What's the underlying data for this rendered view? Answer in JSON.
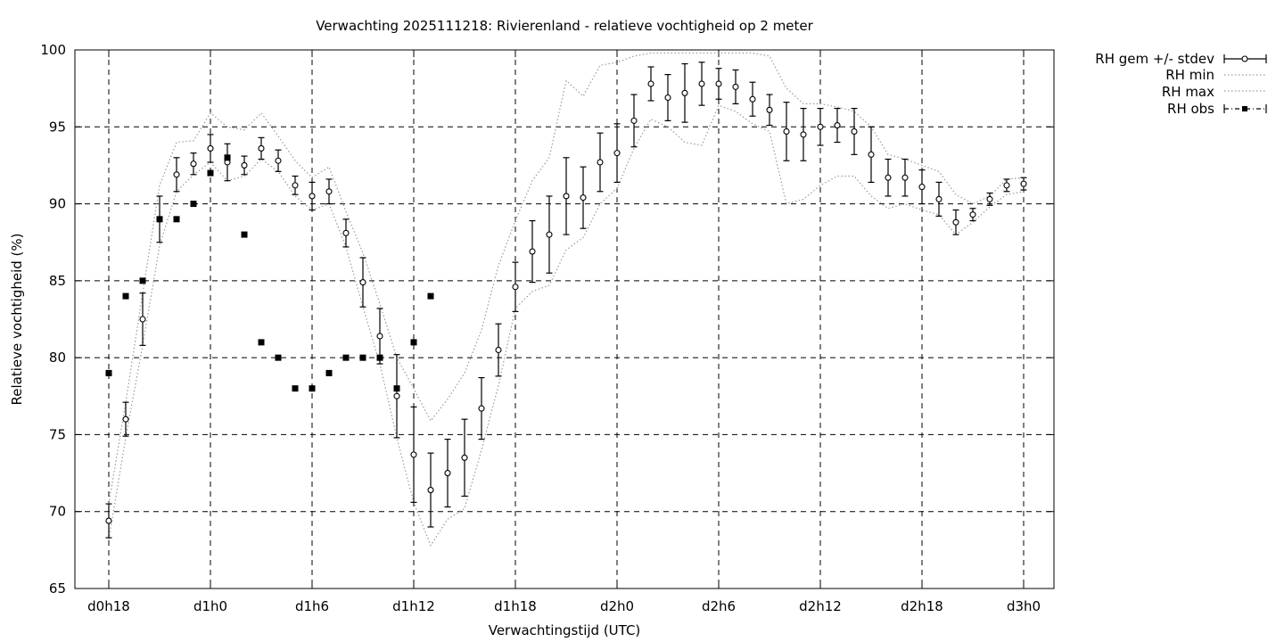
{
  "chart_data": {
    "type": "scatter",
    "title": "Verwachting 2025111218: Rivierenland - relatieve vochtigheid op 2 meter",
    "xlabel": "Verwachtingstijd (UTC)",
    "ylabel": "Relatieve vochtigheid (%)",
    "x_unit": "hours since d0h0",
    "xlim": [
      16,
      74
    ],
    "ylim": [
      65,
      100
    ],
    "x_ticks": [
      {
        "value": 18,
        "label": "d0h18"
      },
      {
        "value": 24,
        "label": "d1h0"
      },
      {
        "value": 30,
        "label": "d1h6"
      },
      {
        "value": 36,
        "label": "d1h12"
      },
      {
        "value": 42,
        "label": "d1h18"
      },
      {
        "value": 48,
        "label": "d2h0"
      },
      {
        "value": 54,
        "label": "d2h6"
      },
      {
        "value": 60,
        "label": "d2h12"
      },
      {
        "value": 66,
        "label": "d2h18"
      },
      {
        "value": 72,
        "label": "d3h0"
      }
    ],
    "y_ticks": [
      65,
      70,
      75,
      80,
      85,
      90,
      95,
      100
    ],
    "grid": true,
    "legend_position": "outside-top-right",
    "legend": [
      {
        "label": "RH gem +/- stdev",
        "style": "errorbar-open-circle"
      },
      {
        "label": "RH min",
        "style": "dotted"
      },
      {
        "label": "RH max",
        "style": "dotted"
      },
      {
        "label": "RH obs",
        "style": "filled-square"
      }
    ],
    "series": [
      {
        "name": "RH gem +/- stdev",
        "x": [
          18,
          19,
          20,
          21,
          22,
          23,
          24,
          25,
          26,
          27,
          28,
          29,
          30,
          31,
          32,
          33,
          34,
          35,
          36,
          37,
          38,
          39,
          40,
          41,
          42,
          43,
          44,
          45,
          46,
          47,
          48,
          49,
          50,
          51,
          52,
          53,
          54,
          55,
          56,
          57,
          58,
          59,
          60,
          61,
          62,
          63,
          64,
          65,
          66,
          67,
          68,
          69,
          70,
          71,
          72
        ],
        "mean": [
          69.4,
          76.0,
          82.5,
          89.0,
          91.9,
          92.6,
          93.6,
          92.7,
          92.5,
          93.6,
          92.8,
          91.2,
          90.5,
          90.8,
          88.1,
          84.9,
          81.4,
          77.5,
          73.7,
          71.4,
          72.5,
          73.5,
          76.7,
          80.5,
          84.6,
          86.9,
          88.0,
          90.5,
          90.4,
          92.7,
          93.3,
          95.4,
          97.8,
          96.9,
          97.2,
          97.8,
          97.8,
          97.6,
          96.8,
          96.1,
          94.7,
          94.5,
          95.0,
          95.1,
          94.7,
          93.2,
          91.7,
          91.7,
          91.1,
          90.3,
          88.8,
          89.3,
          90.3,
          91.2,
          91.3
        ],
        "stdev": [
          1.1,
          1.1,
          1.7,
          1.5,
          1.1,
          0.7,
          0.9,
          1.2,
          0.6,
          0.7,
          0.7,
          0.6,
          0.9,
          0.8,
          0.9,
          1.6,
          1.8,
          2.7,
          3.1,
          2.4,
          2.2,
          2.5,
          2.0,
          1.7,
          1.6,
          2.0,
          2.5,
          2.5,
          2.0,
          1.9,
          1.9,
          1.7,
          1.1,
          1.5,
          1.9,
          1.4,
          1.0,
          1.1,
          1.1,
          1.0,
          1.9,
          1.7,
          1.2,
          1.1,
          1.5,
          1.8,
          1.2,
          1.2,
          1.1,
          1.1,
          0.8,
          0.4,
          0.4,
          0.4,
          0.4
        ]
      },
      {
        "name": "RH min",
        "x": [
          18,
          19,
          20,
          21,
          22,
          23,
          24,
          25,
          26,
          27,
          28,
          29,
          30,
          31,
          32,
          33,
          34,
          35,
          36,
          37,
          38,
          39,
          40,
          41,
          42,
          43,
          44,
          45,
          46,
          47,
          48,
          49,
          50,
          51,
          52,
          53,
          54,
          55,
          56,
          57,
          58,
          59,
          60,
          61,
          62,
          63,
          64,
          65,
          66,
          67,
          68,
          69,
          70,
          71,
          72
        ],
        "values": [
          68.2,
          74.8,
          80.8,
          87.3,
          90.8,
          91.9,
          92.7,
          91.5,
          91.8,
          92.9,
          92.1,
          90.5,
          89.6,
          90.0,
          87.2,
          83.3,
          79.6,
          74.8,
          70.6,
          67.8,
          69.5,
          70.2,
          74.0,
          78.2,
          83.2,
          84.3,
          84.7,
          87.0,
          87.8,
          90.0,
          91.0,
          93.6,
          95.5,
          95.0,
          94.0,
          93.8,
          96.4,
          96.0,
          95.2,
          94.7,
          90.0,
          90.3,
          91.2,
          91.8,
          91.8,
          90.5,
          89.7,
          90.0,
          89.6,
          89.3,
          88.0,
          88.8,
          89.8,
          90.6,
          90.8
        ]
      },
      {
        "name": "RH max",
        "x": [
          18,
          19,
          20,
          21,
          22,
          23,
          24,
          25,
          26,
          27,
          28,
          29,
          30,
          31,
          32,
          33,
          34,
          35,
          36,
          37,
          38,
          39,
          40,
          41,
          42,
          43,
          44,
          45,
          46,
          47,
          48,
          49,
          50,
          51,
          52,
          53,
          54,
          55,
          56,
          57,
          58,
          59,
          60,
          61,
          62,
          63,
          64,
          65,
          66,
          67,
          68,
          69,
          70,
          71,
          72
        ],
        "values": [
          70.5,
          77.1,
          84.2,
          91.2,
          94.0,
          94.1,
          95.9,
          95.0,
          94.8,
          95.9,
          94.4,
          92.8,
          91.7,
          92.4,
          89.5,
          86.8,
          83.5,
          80.0,
          78.0,
          75.9,
          77.3,
          79.0,
          81.8,
          86.0,
          88.9,
          91.5,
          93.0,
          98.0,
          97.0,
          99.0,
          99.2,
          99.6,
          99.8,
          99.8,
          99.8,
          99.8,
          99.8,
          99.8,
          99.8,
          99.6,
          97.5,
          96.5,
          96.5,
          96.3,
          96.0,
          95.0,
          93.2,
          92.9,
          92.5,
          92.1,
          90.6,
          90.0,
          90.5,
          91.6,
          91.7
        ]
      },
      {
        "name": "RH obs",
        "x": [
          18,
          19,
          20,
          21,
          22,
          23,
          24,
          25,
          26,
          27,
          28,
          29,
          30,
          31,
          32,
          33,
          34,
          35,
          36,
          37
        ],
        "values": [
          79,
          84,
          85,
          89,
          89,
          90,
          92,
          93,
          88,
          81,
          80,
          78,
          78,
          79,
          80,
          80,
          80,
          78,
          81,
          84
        ]
      }
    ]
  }
}
